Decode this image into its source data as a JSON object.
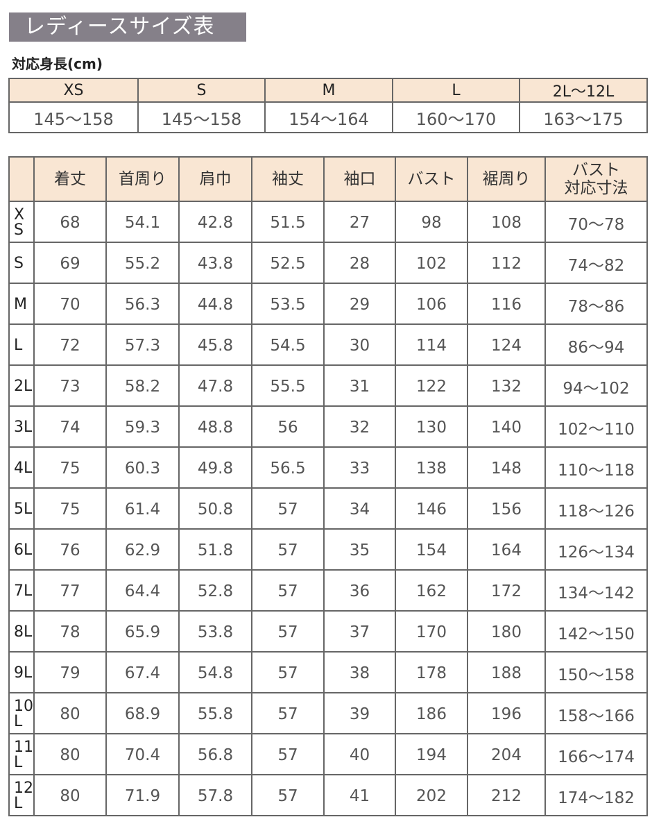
{
  "title": "レディースサイズ表",
  "height_table": {
    "label": "対応身長(cm)",
    "sizes": [
      "XS",
      "S",
      "M",
      "L",
      "2L〜12L"
    ],
    "heights": [
      "145〜158",
      "145〜158",
      "154〜164",
      "160〜170",
      "163〜175"
    ]
  },
  "size_table": {
    "headers": [
      "",
      "着丈",
      "首周り",
      "肩巾",
      "袖丈",
      "袖口",
      "バスト",
      "裾周り",
      "バスト\n対応寸法"
    ],
    "rows": [
      {
        "size": "XS",
        "values": [
          "68",
          "54.1",
          "42.8",
          "51.5",
          "27",
          "98",
          "108",
          "70〜78"
        ]
      },
      {
        "size": "S",
        "values": [
          "69",
          "55.2",
          "43.8",
          "52.5",
          "28",
          "102",
          "112",
          "74〜82"
        ]
      },
      {
        "size": "M",
        "values": [
          "70",
          "56.3",
          "44.8",
          "53.5",
          "29",
          "106",
          "116",
          "78〜86"
        ]
      },
      {
        "size": "L",
        "values": [
          "72",
          "57.3",
          "45.8",
          "54.5",
          "30",
          "114",
          "124",
          "86〜94"
        ]
      },
      {
        "size": "2L",
        "values": [
          "73",
          "58.2",
          "47.8",
          "55.5",
          "31",
          "122",
          "132",
          "94〜102"
        ]
      },
      {
        "size": "3L",
        "values": [
          "74",
          "59.3",
          "48.8",
          "56",
          "32",
          "130",
          "140",
          "102〜110"
        ]
      },
      {
        "size": "4L",
        "values": [
          "75",
          "60.3",
          "49.8",
          "56.5",
          "33",
          "138",
          "148",
          "110〜118"
        ]
      },
      {
        "size": "5L",
        "values": [
          "75",
          "61.4",
          "50.8",
          "57",
          "34",
          "146",
          "156",
          "118〜126"
        ]
      },
      {
        "size": "6L",
        "values": [
          "76",
          "62.9",
          "51.8",
          "57",
          "35",
          "154",
          "164",
          "126〜134"
        ]
      },
      {
        "size": "7L",
        "values": [
          "77",
          "64.4",
          "52.8",
          "57",
          "36",
          "162",
          "172",
          "134〜142"
        ]
      },
      {
        "size": "8L",
        "values": [
          "78",
          "65.9",
          "53.8",
          "57",
          "37",
          "170",
          "180",
          "142〜150"
        ]
      },
      {
        "size": "9L",
        "values": [
          "79",
          "67.4",
          "54.8",
          "57",
          "38",
          "178",
          "188",
          "150〜158"
        ]
      },
      {
        "size": "10L",
        "values": [
          "80",
          "68.9",
          "55.8",
          "57",
          "39",
          "186",
          "196",
          "158〜166"
        ]
      },
      {
        "size": "11L",
        "values": [
          "80",
          "70.4",
          "56.8",
          "57",
          "40",
          "194",
          "204",
          "166〜174"
        ]
      },
      {
        "size": "12L",
        "values": [
          "80",
          "71.9",
          "57.8",
          "57",
          "41",
          "202",
          "212",
          "174〜182"
        ]
      }
    ]
  },
  "colors": {
    "title_bg": "#858089",
    "header_bg": "#f9e6d3",
    "border": "#666666"
  }
}
